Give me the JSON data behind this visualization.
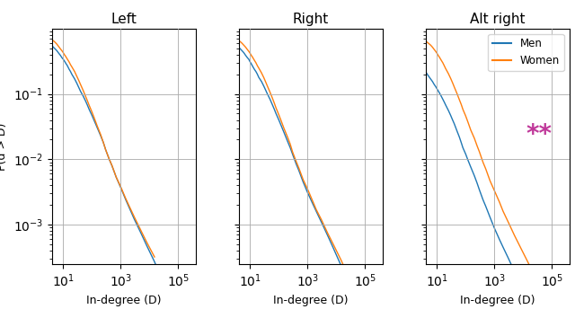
{
  "titles": [
    "Left",
    "Right",
    "Alt right"
  ],
  "xlabel": "In-degree (D)",
  "ylabel": "P(d > D)",
  "men_color": "#1f77b4",
  "women_color": "#ff7f0e",
  "annotation": "**",
  "annotation_color": "#c0399a",
  "legend_labels": [
    "Men",
    "Women"
  ],
  "xlim": [
    4,
    400000
  ],
  "ylim": [
    0.00025,
    1.0
  ],
  "figsize": [
    6.4,
    3.54
  ],
  "dpi": 100,
  "panels": [
    {
      "men_x": [
        4,
        5,
        6,
        7,
        8,
        9,
        10,
        11,
        12,
        14,
        16,
        18,
        20,
        25,
        30,
        35,
        40,
        50,
        60,
        70,
        80,
        100,
        120,
        150,
        200,
        250,
        300,
        400,
        500,
        700,
        1000,
        1500,
        2000,
        3000,
        5000,
        8000,
        15000,
        30000,
        80000,
        200000,
        400000
      ],
      "men_y": [
        0.55,
        0.5,
        0.46,
        0.42,
        0.39,
        0.36,
        0.34,
        0.32,
        0.3,
        0.27,
        0.24,
        0.22,
        0.2,
        0.17,
        0.145,
        0.125,
        0.11,
        0.092,
        0.078,
        0.067,
        0.058,
        0.047,
        0.039,
        0.031,
        0.023,
        0.018,
        0.014,
        0.01,
        0.0079,
        0.0053,
        0.0037,
        0.0024,
        0.0018,
        0.0012,
        0.00075,
        0.00048,
        0.00027,
        0.00013,
        5.5e-05,
        2.2e-05,
        1e-05
      ],
      "women_x": [
        4,
        5,
        6,
        7,
        8,
        9,
        10,
        11,
        12,
        14,
        16,
        18,
        20,
        25,
        30,
        35,
        40,
        50,
        60,
        70,
        80,
        100,
        120,
        150,
        200,
        250,
        300,
        400,
        500,
        700,
        1000,
        1500,
        2000,
        3000,
        5000,
        8000,
        15000
      ],
      "women_y": [
        0.68,
        0.63,
        0.58,
        0.53,
        0.49,
        0.46,
        0.43,
        0.4,
        0.38,
        0.34,
        0.31,
        0.28,
        0.26,
        0.22,
        0.185,
        0.16,
        0.14,
        0.112,
        0.092,
        0.078,
        0.067,
        0.053,
        0.043,
        0.033,
        0.024,
        0.018,
        0.014,
        0.01,
        0.008,
        0.0053,
        0.0038,
        0.0025,
        0.0019,
        0.0013,
        0.00082,
        0.00054,
        0.00032
      ]
    },
    {
      "men_x": [
        4,
        5,
        6,
        7,
        8,
        9,
        10,
        11,
        12,
        14,
        16,
        18,
        20,
        25,
        30,
        35,
        40,
        50,
        60,
        70,
        80,
        100,
        120,
        150,
        200,
        250,
        300,
        400,
        500,
        700,
        1000,
        1500,
        2000,
        3000,
        5000,
        8000,
        15000,
        30000,
        80000,
        200000,
        400000
      ],
      "men_y": [
        0.52,
        0.47,
        0.43,
        0.39,
        0.36,
        0.34,
        0.31,
        0.29,
        0.27,
        0.24,
        0.22,
        0.2,
        0.18,
        0.155,
        0.132,
        0.114,
        0.1,
        0.082,
        0.068,
        0.058,
        0.05,
        0.04,
        0.033,
        0.026,
        0.019,
        0.015,
        0.012,
        0.0085,
        0.0067,
        0.0045,
        0.0031,
        0.0021,
        0.0016,
        0.0011,
        0.00068,
        0.00043,
        0.00023,
        0.00011,
        4.6e-05,
        1.8e-05,
        8.5e-06
      ],
      "women_x": [
        4,
        5,
        6,
        7,
        8,
        9,
        10,
        11,
        12,
        14,
        16,
        18,
        20,
        25,
        30,
        35,
        40,
        50,
        60,
        70,
        80,
        100,
        120,
        150,
        200,
        250,
        300,
        400,
        500,
        700,
        1000,
        1500,
        2000,
        3000,
        5000,
        8000,
        15000,
        30000
      ],
      "women_y": [
        0.66,
        0.61,
        0.56,
        0.52,
        0.48,
        0.45,
        0.42,
        0.39,
        0.37,
        0.33,
        0.3,
        0.27,
        0.25,
        0.21,
        0.178,
        0.152,
        0.132,
        0.105,
        0.086,
        0.072,
        0.061,
        0.048,
        0.039,
        0.03,
        0.022,
        0.017,
        0.013,
        0.0093,
        0.0073,
        0.0049,
        0.0035,
        0.0023,
        0.0017,
        0.0012,
        0.00074,
        0.00049,
        0.00028,
        0.00014
      ]
    },
    {
      "men_x": [
        4,
        5,
        6,
        7,
        8,
        9,
        10,
        11,
        12,
        14,
        16,
        18,
        20,
        25,
        30,
        35,
        40,
        50,
        60,
        70,
        80,
        100,
        120,
        150,
        200,
        250,
        300,
        400,
        500,
        700,
        1000,
        1500,
        2000,
        3000,
        5000,
        8000,
        15000,
        30000,
        80000,
        200000,
        400000
      ],
      "men_y": [
        0.22,
        0.19,
        0.17,
        0.155,
        0.14,
        0.13,
        0.12,
        0.112,
        0.105,
        0.093,
        0.083,
        0.075,
        0.068,
        0.056,
        0.047,
        0.04,
        0.035,
        0.027,
        0.022,
        0.018,
        0.015,
        0.012,
        0.0097,
        0.0076,
        0.0056,
        0.0043,
        0.0034,
        0.0024,
        0.0019,
        0.0013,
        0.00088,
        0.00059,
        0.00045,
        0.00031,
        0.00019,
        0.00012,
        6.6e-05,
        3.2e-05,
        1.3e-05,
        5.2e-06,
        2.5e-06
      ],
      "women_x": [
        4,
        5,
        6,
        7,
        8,
        9,
        10,
        11,
        12,
        14,
        16,
        18,
        20,
        25,
        30,
        35,
        40,
        50,
        60,
        70,
        80,
        100,
        120,
        150,
        200,
        250,
        300,
        400,
        500,
        700,
        1000,
        1500,
        2000,
        3000,
        5000,
        8000,
        15000,
        30000,
        80000
      ],
      "women_y": [
        0.65,
        0.6,
        0.56,
        0.52,
        0.48,
        0.45,
        0.42,
        0.39,
        0.37,
        0.33,
        0.3,
        0.27,
        0.245,
        0.205,
        0.173,
        0.148,
        0.128,
        0.101,
        0.082,
        0.069,
        0.058,
        0.046,
        0.037,
        0.028,
        0.021,
        0.016,
        0.013,
        0.009,
        0.0071,
        0.0047,
        0.0033,
        0.0022,
        0.0016,
        0.0011,
        0.00068,
        0.00045,
        0.00026,
        0.00013,
        5.2e-05
      ]
    }
  ]
}
